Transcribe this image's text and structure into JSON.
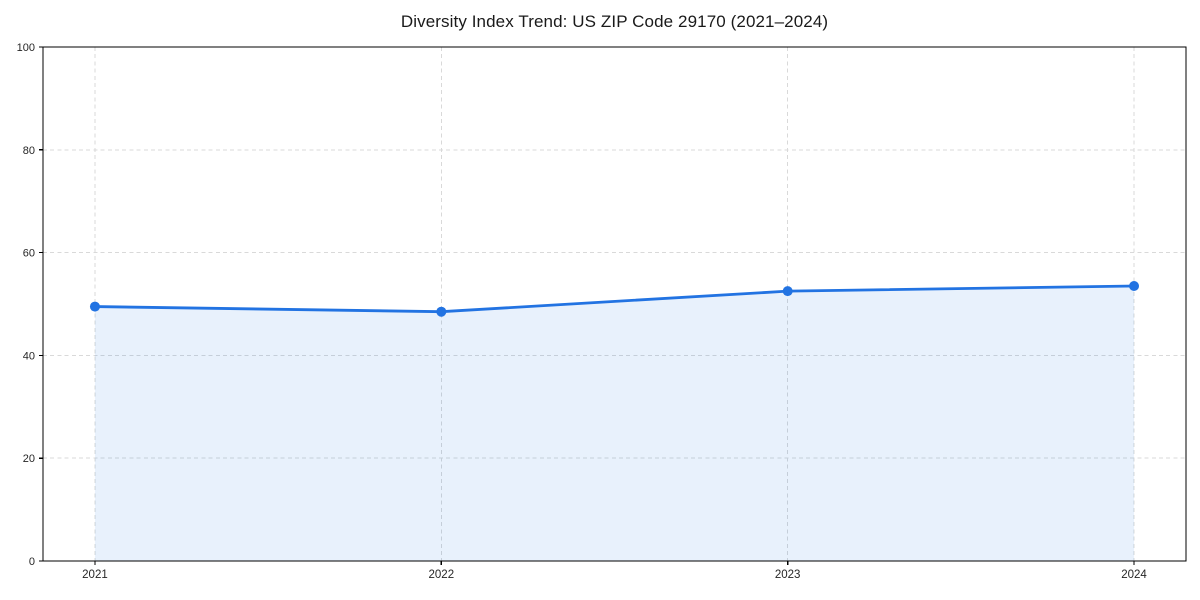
{
  "page": {
    "background": "#ffffff"
  },
  "chart_data": {
    "type": "line",
    "title": "Diversity Index Trend: US ZIP Code 29170 (2021–2024)",
    "categories": [
      "2021",
      "2022",
      "2023",
      "2024"
    ],
    "series": [
      {
        "name": "Diversity Index",
        "values": [
          49.5,
          48.5,
          52.5,
          53.5
        ]
      }
    ],
    "xlabel": "",
    "ylabel": "",
    "ylim": [
      0,
      100
    ],
    "yticks": [
      0,
      20,
      40,
      60,
      80,
      100
    ],
    "grid": true,
    "grid_style": "dashed",
    "legend": false,
    "area_fill": true,
    "marker": "circle",
    "colors": {
      "line": "#2273e2",
      "marker": "#2273e2",
      "area": "rgba(34, 115, 226, 0.10)",
      "grid": "#d9d9d9",
      "axis": "#000000",
      "title_text": "#1a1a1a",
      "tick_text": "#262626",
      "background": "#ffffff"
    }
  }
}
